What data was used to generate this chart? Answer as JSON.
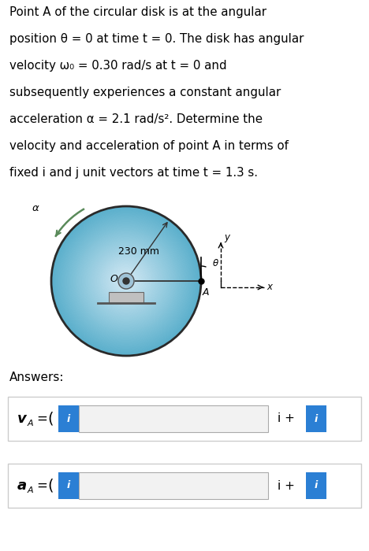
{
  "bg_color": "#ffffff",
  "blue_btn_color": "#2b7fd4",
  "text_lines": [
    "Point A of the circular disk is at the angular",
    "position θ = 0 at time t = 0. The disk has angular",
    "velocity ω₀ = 0.30 rad/s at t = 0 and",
    "subsequently experiences a constant angular",
    "acceleration α = 2.1 rad/s². Determine the",
    "velocity and acceleration of point A in terms of",
    "fixed i and j unit vectors at time t = 1.3 s."
  ],
  "disk_color_light": "#b8d8ea",
  "disk_color_mid": "#7ab4cc",
  "disk_color_dark": "#4a90b8",
  "disk_edge_color": "#2a2a2a",
  "answers_label": "Answers:",
  "va_text": "v",
  "aa_text": "a",
  "sub_A": "A",
  "dim_label": "230 mm"
}
